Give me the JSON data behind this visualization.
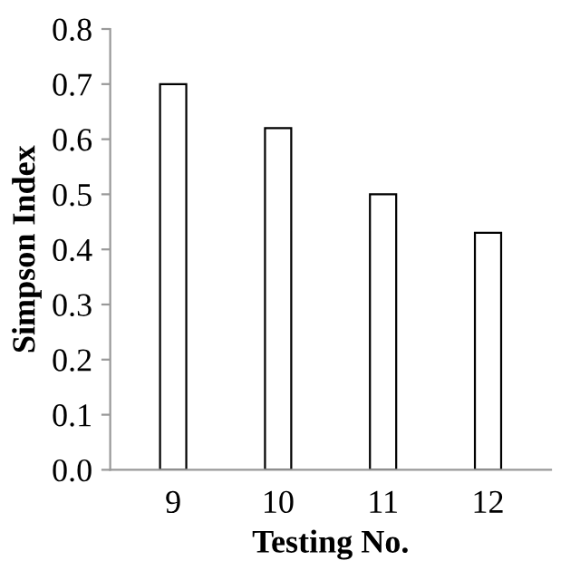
{
  "chart_data": {
    "type": "bar",
    "xlabel": "Testing No.",
    "ylabel": "Simpson Index",
    "categories": [
      "9",
      "10",
      "11",
      "12"
    ],
    "values": [
      0.7,
      0.62,
      0.5,
      0.43
    ],
    "color": "#ffffff",
    "ylim": [
      0,
      0.8
    ],
    "yticks": [
      {
        "value": 0,
        "label": "0.0"
      },
      0.1,
      0.2,
      0.3,
      0.4,
      0.5,
      0.6,
      0.7,
      0.8
    ],
    "grid": false
  }
}
